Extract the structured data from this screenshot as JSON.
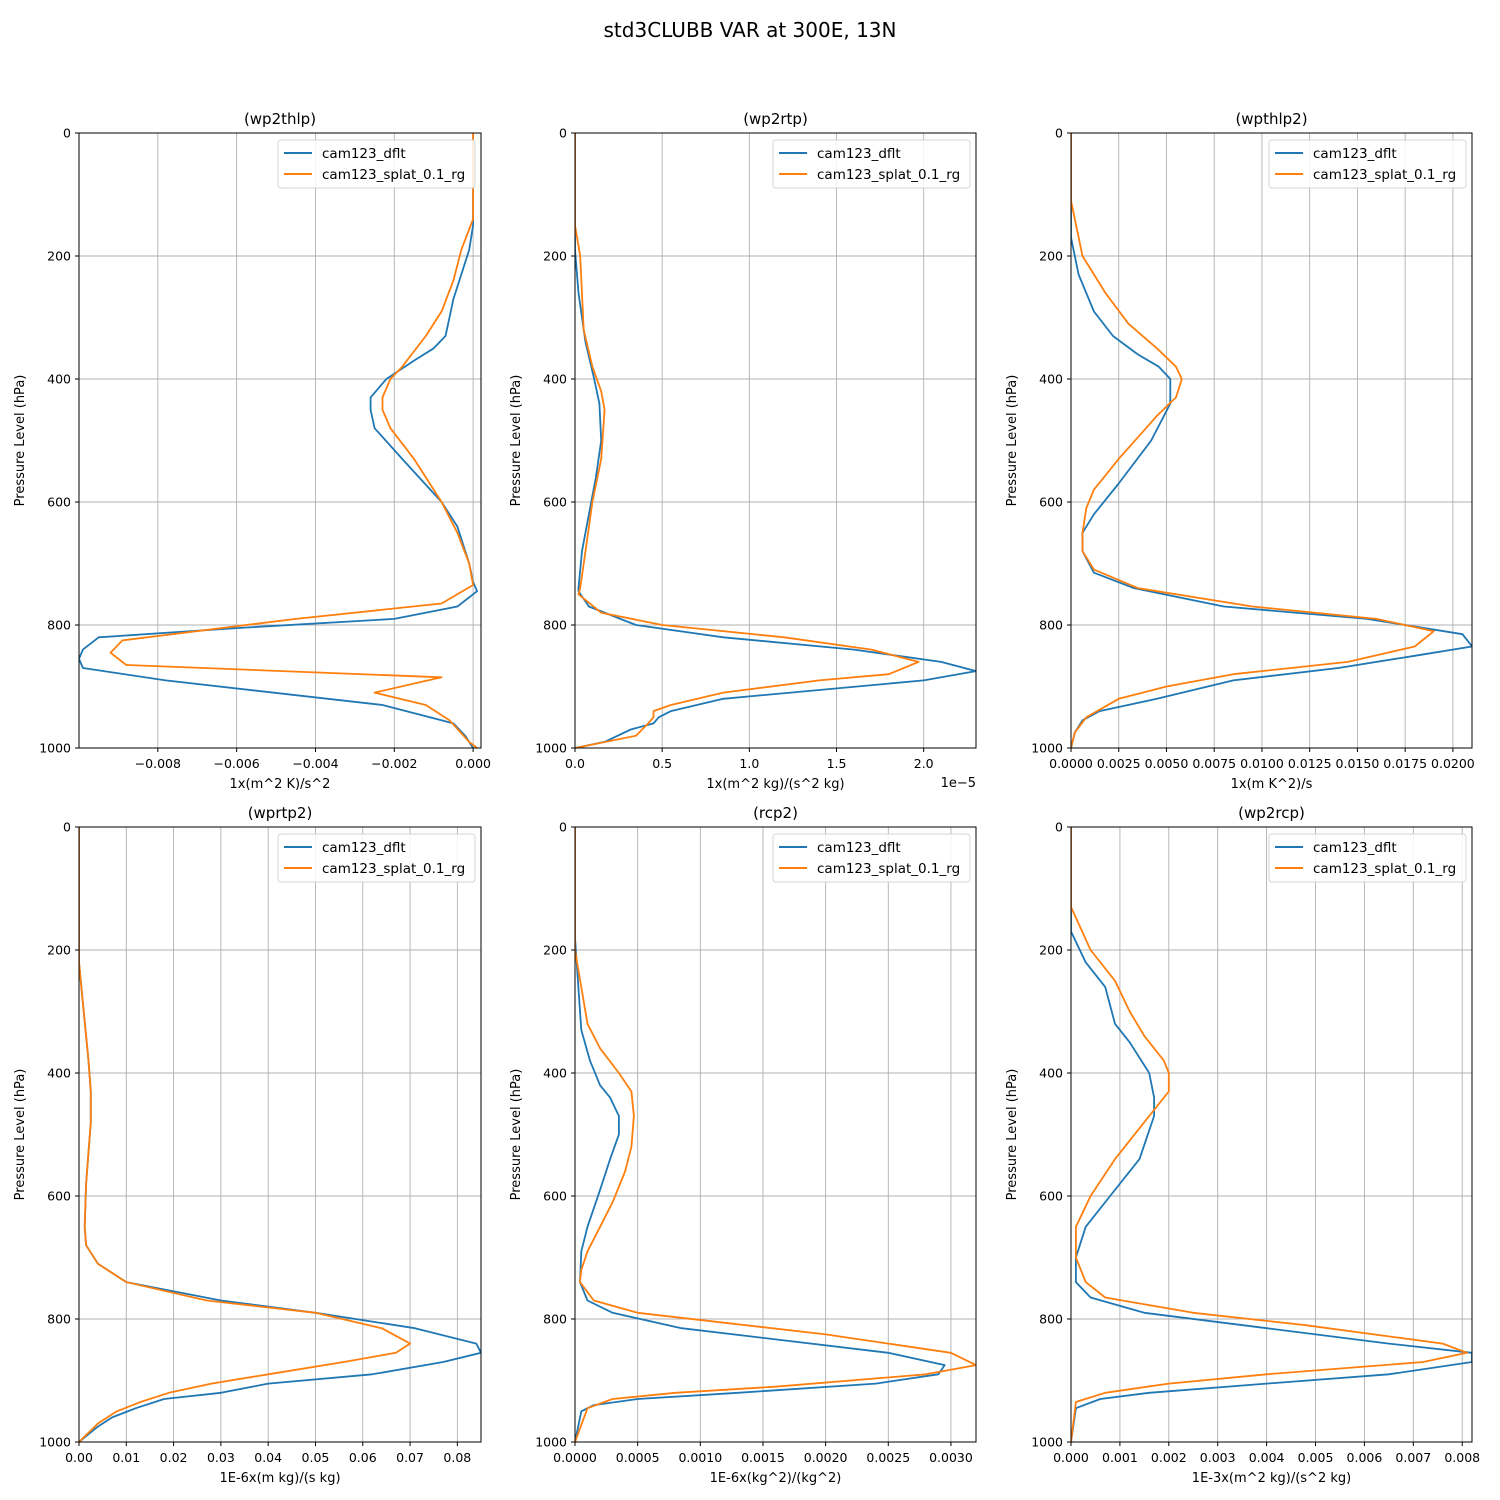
{
  "figure": {
    "title": "std3CLUBB VAR at 300E, 13N",
    "colors": {
      "cam123_dflt": "#1f77b4",
      "cam123_splat_0.1_rg": "#ff7f0e"
    }
  },
  "chart_data": [
    {
      "type": "line",
      "title": "(wp2thlp)",
      "xlabel": "1x(m^2 K)/s^2",
      "ylabel": "Pressure Level (hPa)",
      "xlim": [
        -0.01,
        0.0002
      ],
      "ylim": [
        1000,
        0
      ],
      "xticks": [
        -0.008,
        -0.006,
        -0.004,
        -0.002,
        0.0
      ],
      "xtick_labels": [
        "−0.008",
        "−0.006",
        "−0.004",
        "−0.002",
        "0.000"
      ],
      "yticks": [
        0,
        200,
        400,
        600,
        800,
        1000
      ],
      "ytick_labels": [
        "0",
        "200",
        "400",
        "600",
        "800",
        "1000"
      ],
      "grid": true,
      "legend_position": "upper right",
      "series": [
        {
          "name": "cam123_dflt",
          "color": "#1f77b4",
          "x": [
            0.0,
            0.0,
            0.0,
            -0.0001,
            -0.0003,
            -0.0005,
            -0.0006,
            -0.0007,
            -0.001,
            -0.0015,
            -0.0022,
            -0.0026,
            -0.0026,
            -0.0025,
            -0.0018,
            -0.0008,
            -0.0004,
            -0.0001,
            0.0,
            0.0001,
            -0.0004,
            -0.002,
            -0.006,
            -0.0095,
            -0.0099,
            -0.01,
            -0.0099,
            -0.0078,
            -0.0023,
            -0.0011,
            -0.0005,
            -0.0002,
            0.0
          ],
          "y": [
            0,
            100,
            150,
            190,
            230,
            270,
            300,
            330,
            350,
            370,
            400,
            430,
            450,
            480,
            530,
            600,
            640,
            700,
            730,
            745,
            770,
            790,
            805,
            820,
            840,
            855,
            870,
            890,
            930,
            950,
            960,
            980,
            1000
          ]
        },
        {
          "name": "cam123_splat_0.1_rg",
          "color": "#ff7f0e",
          "x": [
            0.0,
            0.0,
            0.0,
            -0.0003,
            -0.0005,
            -0.0008,
            -0.0012,
            -0.0018,
            -0.0021,
            -0.0023,
            -0.0023,
            -0.0021,
            -0.0015,
            -0.0008,
            -0.0004,
            -0.0001,
            0.0,
            -0.0008,
            -0.0045,
            -0.0089,
            -0.0092,
            -0.0088,
            -0.0008,
            -0.0025,
            -0.0012,
            -0.0006,
            -0.0001,
            0.0001
          ],
          "y": [
            0,
            100,
            140,
            190,
            240,
            290,
            330,
            380,
            400,
            430,
            450,
            480,
            530,
            600,
            650,
            700,
            735,
            765,
            790,
            825,
            845,
            865,
            885,
            910,
            930,
            955,
            990,
            1000
          ]
        }
      ]
    },
    {
      "type": "line",
      "title": "(wp2rtp)",
      "xlabel": "1x(m^2 kg)/(s^2 kg)",
      "x_offset_label": "1e−5",
      "ylabel": "Pressure Level (hPa)",
      "xlim": [
        0,
        2.3
      ],
      "ylim": [
        1000,
        0
      ],
      "xticks": [
        0.0,
        0.5,
        1.0,
        1.5,
        2.0
      ],
      "xtick_labels": [
        "0.0",
        "0.5",
        "1.0",
        "1.5",
        "2.0"
      ],
      "yticks": [
        0,
        200,
        400,
        600,
        800,
        1000
      ],
      "ytick_labels": [
        "0",
        "200",
        "400",
        "600",
        "800",
        "1000"
      ],
      "grid": true,
      "legend_position": "upper right",
      "series": [
        {
          "name": "cam123_dflt",
          "color": "#1f77b4",
          "x": [
            0,
            0,
            0.02,
            0.06,
            0.11,
            0.14,
            0.15,
            0.12,
            0.08,
            0.04,
            0.02,
            0.02,
            0.08,
            0.35,
            0.85,
            1.6,
            2.1,
            2.3,
            2.0,
            0.85,
            0.55,
            0.48,
            0.45,
            0.32,
            0.17,
            0.0
          ],
          "y": [
            0,
            190,
            260,
            340,
            400,
            440,
            500,
            560,
            620,
            680,
            740,
            745,
            770,
            800,
            820,
            840,
            860,
            875,
            890,
            920,
            940,
            950,
            960,
            970,
            990,
            1000
          ],
          "label_unused": ""
        },
        {
          "name": "cam123_splat_0.1_rg",
          "color": "#ff7f0e",
          "x": [
            0,
            0,
            0.03,
            0.05,
            0.1,
            0.15,
            0.17,
            0.15,
            0.1,
            0.06,
            0.03,
            0.02,
            0.15,
            0.5,
            1.2,
            1.7,
            1.97,
            1.8,
            1.4,
            0.85,
            0.55,
            0.45,
            0.45,
            0.42,
            0.35,
            0.0
          ],
          "y": [
            0,
            150,
            200,
            320,
            380,
            420,
            450,
            530,
            600,
            680,
            740,
            750,
            780,
            800,
            820,
            840,
            860,
            880,
            890,
            910,
            930,
            940,
            950,
            960,
            980,
            1000
          ]
        }
      ]
    },
    {
      "type": "line",
      "title": "(wpthlp2)",
      "xlabel": "1x(m K^2)/s",
      "ylabel": "Pressure Level (hPa)",
      "xlim": [
        0,
        0.021
      ],
      "ylim": [
        1000,
        0
      ],
      "xticks": [
        0.0,
        0.0025,
        0.005,
        0.0075,
        0.01,
        0.0125,
        0.015,
        0.0175,
        0.02
      ],
      "xtick_labels": [
        "0.0000",
        "0.0025",
        "0.0050",
        "0.0075",
        "0.0100",
        "0.0125",
        "0.0150",
        "0.0175",
        "0.0200"
      ],
      "yticks": [
        0,
        200,
        400,
        600,
        800,
        1000
      ],
      "ytick_labels": [
        "0",
        "200",
        "400",
        "600",
        "800",
        "1000"
      ],
      "grid": true,
      "legend_position": "upper right",
      "series": [
        {
          "name": "cam123_dflt",
          "color": "#1f77b4",
          "x": [
            0,
            0,
            0.0004,
            0.0012,
            0.0022,
            0.0035,
            0.0046,
            0.0052,
            0.0052,
            0.0042,
            0.0025,
            0.0012,
            0.0006,
            0.0006,
            0.0012,
            0.0033,
            0.008,
            0.0155,
            0.0205,
            0.021,
            0.018,
            0.014,
            0.0085,
            0.0045,
            0.0015,
            0.0006,
            0.0002,
            0.0
          ],
          "y": [
            0,
            170,
            230,
            290,
            330,
            360,
            380,
            400,
            440,
            500,
            570,
            620,
            650,
            680,
            715,
            740,
            770,
            790,
            815,
            835,
            850,
            870,
            890,
            920,
            940,
            955,
            975,
            1000
          ]
        },
        {
          "name": "cam123_splat_0.1_rg",
          "color": "#ff7f0e",
          "x": [
            0,
            0,
            0.0006,
            0.0018,
            0.003,
            0.0045,
            0.0055,
            0.0058,
            0.0055,
            0.0045,
            0.0025,
            0.0012,
            0.0008,
            0.0006,
            0.0006,
            0.0012,
            0.0035,
            0.0095,
            0.016,
            0.019,
            0.018,
            0.0145,
            0.0085,
            0.005,
            0.0025,
            0.0008,
            0.0002,
            0.0
          ],
          "y": [
            0,
            110,
            200,
            260,
            310,
            350,
            380,
            400,
            430,
            460,
            530,
            580,
            610,
            650,
            680,
            710,
            740,
            770,
            790,
            810,
            835,
            860,
            880,
            900,
            920,
            950,
            975,
            1000
          ]
        }
      ]
    },
    {
      "type": "line",
      "title": "(wprtp2)",
      "xlabel": "1E-6x(m kg)/(s kg)",
      "ylabel": "Pressure Level (hPa)",
      "xlim": [
        0,
        0.085
      ],
      "ylim": [
        1000,
        0
      ],
      "xticks": [
        0.0,
        0.01,
        0.02,
        0.03,
        0.04,
        0.05,
        0.06,
        0.07,
        0.08
      ],
      "xtick_labels": [
        "0.00",
        "0.01",
        "0.02",
        "0.03",
        "0.04",
        "0.05",
        "0.06",
        "0.07",
        "0.08"
      ],
      "yticks": [
        0,
        200,
        400,
        600,
        800,
        1000
      ],
      "ytick_labels": [
        "0",
        "200",
        "400",
        "600",
        "800",
        "1000"
      ],
      "grid": true,
      "legend_position": "upper right",
      "series": [
        {
          "name": "cam123_dflt",
          "color": "#1f77b4",
          "x": [
            0,
            0,
            0.001,
            0.002,
            0.0025,
            0.0025,
            0.0015,
            0.0012,
            0.0015,
            0.004,
            0.01,
            0.03,
            0.05,
            0.071,
            0.084,
            0.085,
            0.077,
            0.062,
            0.04,
            0.03,
            0.018,
            0.012,
            0.007,
            0.004,
            0.0
          ],
          "y": [
            0,
            220,
            300,
            380,
            430,
            480,
            580,
            650,
            680,
            710,
            740,
            770,
            790,
            815,
            840,
            855,
            870,
            890,
            905,
            920,
            930,
            945,
            960,
            975,
            1000
          ]
        },
        {
          "name": "cam123_splat_0.1_rg",
          "color": "#ff7f0e",
          "x": [
            0,
            0,
            0.001,
            0.002,
            0.0025,
            0.0025,
            0.0015,
            0.0012,
            0.0015,
            0.004,
            0.01,
            0.027,
            0.05,
            0.064,
            0.07,
            0.067,
            0.056,
            0.04,
            0.028,
            0.019,
            0.013,
            0.008,
            0.004,
            0.0
          ],
          "y": [
            0,
            220,
            300,
            380,
            430,
            480,
            580,
            650,
            680,
            710,
            740,
            770,
            790,
            815,
            840,
            855,
            870,
            890,
            905,
            920,
            935,
            950,
            970,
            1000
          ]
        }
      ]
    },
    {
      "type": "line",
      "title": "(rcp2)",
      "xlabel": "1E-6x(kg^2)/(kg^2)",
      "ylabel": "Pressure Level (hPa)",
      "xlim": [
        0,
        0.0032
      ],
      "ylim": [
        1000,
        0
      ],
      "xticks": [
        0.0,
        0.0005,
        0.001,
        0.0015,
        0.002,
        0.0025,
        0.003
      ],
      "xtick_labels": [
        "0.0000",
        "0.0005",
        "0.0010",
        "0.0015",
        "0.0020",
        "0.0025",
        "0.0030"
      ],
      "yticks": [
        0,
        200,
        400,
        600,
        800,
        1000
      ],
      "ytick_labels": [
        "0",
        "200",
        "400",
        "600",
        "800",
        "1000"
      ],
      "grid": true,
      "legend_position": "upper right",
      "series": [
        {
          "name": "cam123_dflt",
          "color": "#1f77b4",
          "x": [
            0,
            0,
            5e-05,
            0.00012,
            0.0002,
            0.00028,
            0.00035,
            0.00035,
            0.00028,
            0.0002,
            0.0001,
            5e-05,
            4e-05,
            0.0001,
            0.0003,
            0.00085,
            0.0025,
            0.00295,
            0.0029,
            0.0024,
            0.0013,
            0.0005,
            0.00015,
            5e-05,
            0.0
          ],
          "y": [
            0,
            180,
            330,
            380,
            420,
            440,
            470,
            500,
            540,
            590,
            650,
            690,
            740,
            770,
            790,
            815,
            855,
            875,
            890,
            905,
            920,
            930,
            940,
            950,
            1000
          ]
        },
        {
          "name": "cam123_splat_0.1_rg",
          "color": "#ff7f0e",
          "x": [
            0,
            0,
            0.0001,
            0.0002,
            0.00035,
            0.00045,
            0.00047,
            0.00045,
            0.0004,
            0.0003,
            0.0002,
            0.0001,
            5e-05,
            4e-05,
            0.00015,
            0.0005,
            0.002,
            0.003,
            0.0032,
            0.0028,
            0.0016,
            0.0008,
            0.0003,
            0.0001,
            0.0
          ],
          "y": [
            0,
            200,
            320,
            360,
            400,
            430,
            470,
            520,
            560,
            610,
            650,
            690,
            720,
            740,
            770,
            790,
            825,
            855,
            875,
            890,
            910,
            920,
            930,
            945,
            1000
          ]
        }
      ]
    },
    {
      "type": "line",
      "title": "(wp2rcp)",
      "xlabel": "1E-3x(m^2 kg)/(s^2 kg)",
      "ylabel": "Pressure Level (hPa)",
      "xlim": [
        0,
        0.0082
      ],
      "ylim": [
        1000,
        0
      ],
      "xticks": [
        0.0,
        0.001,
        0.002,
        0.003,
        0.004,
        0.005,
        0.006,
        0.007,
        0.008
      ],
      "xtick_labels": [
        "0.000",
        "0.001",
        "0.002",
        "0.003",
        "0.004",
        "0.005",
        "0.006",
        "0.007",
        "0.008"
      ],
      "yticks": [
        0,
        200,
        400,
        600,
        800,
        1000
      ],
      "ytick_labels": [
        "0",
        "200",
        "400",
        "600",
        "800",
        "1000"
      ],
      "grid": true,
      "legend_position": "upper right",
      "series": [
        {
          "name": "cam123_dflt",
          "color": "#1f77b4",
          "x": [
            0,
            0.0,
            0.0003,
            0.0007,
            0.0009,
            0.0012,
            0.0016,
            0.0017,
            0.0017,
            0.0014,
            0.0008,
            0.0003,
            0.0001,
            0.0001,
            0.0004,
            0.0015,
            0.004,
            0.0065,
            0.0082,
            0.0082,
            0.0065,
            0.004,
            0.0016,
            0.0006,
            0.0001,
            0.0
          ],
          "y": [
            0,
            170,
            220,
            260,
            320,
            350,
            400,
            440,
            470,
            540,
            600,
            650,
            700,
            740,
            765,
            790,
            815,
            840,
            855,
            870,
            890,
            905,
            920,
            930,
            945,
            1000
          ]
        },
        {
          "name": "cam123_splat_0.1_rg",
          "color": "#ff7f0e",
          "x": [
            0,
            0.0,
            0.0004,
            0.0009,
            0.0012,
            0.0015,
            0.0019,
            0.002,
            0.002,
            0.0016,
            0.0009,
            0.0004,
            0.0001,
            0.0001,
            0.0003,
            0.0007,
            0.0025,
            0.0048,
            0.0076,
            0.0081,
            0.0072,
            0.004,
            0.002,
            0.0007,
            0.0001,
            0.0
          ],
          "y": [
            0,
            130,
            200,
            250,
            300,
            340,
            380,
            400,
            430,
            470,
            540,
            600,
            650,
            700,
            740,
            765,
            790,
            810,
            840,
            855,
            870,
            890,
            905,
            920,
            935,
            1000
          ]
        }
      ]
    }
  ]
}
